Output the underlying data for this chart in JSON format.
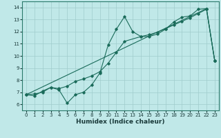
{
  "xlabel": "Humidex (Indice chaleur)",
  "bg_color": "#c0e8e8",
  "grid_color": "#a0cccc",
  "line_color": "#1a6b5a",
  "xlim": [
    -0.5,
    23.5
  ],
  "ylim": [
    5.5,
    14.5
  ],
  "xticks": [
    0,
    1,
    2,
    3,
    4,
    5,
    6,
    7,
    8,
    9,
    10,
    11,
    12,
    13,
    14,
    15,
    16,
    17,
    18,
    19,
    20,
    21,
    22,
    23
  ],
  "yticks": [
    6,
    7,
    8,
    9,
    10,
    11,
    12,
    13,
    14
  ],
  "line1_x": [
    0,
    1,
    2,
    3,
    4,
    5,
    6,
    7,
    8,
    9,
    10,
    11,
    12,
    13,
    14,
    15,
    16,
    17,
    18,
    19,
    20,
    21,
    22,
    23
  ],
  "line1_y": [
    6.8,
    6.7,
    7.1,
    7.4,
    7.2,
    6.1,
    6.8,
    7.0,
    7.6,
    8.6,
    10.9,
    12.2,
    13.25,
    12.0,
    11.6,
    11.6,
    11.8,
    12.2,
    12.8,
    13.2,
    13.3,
    13.85,
    13.9,
    9.6
  ],
  "line2_x": [
    0,
    1,
    2,
    3,
    4,
    5,
    6,
    7,
    8,
    9,
    10,
    11,
    12,
    14,
    15,
    16,
    17,
    18,
    19,
    20,
    21,
    22,
    23
  ],
  "line2_y": [
    6.8,
    6.85,
    7.0,
    7.4,
    7.3,
    7.5,
    7.9,
    8.1,
    8.35,
    8.7,
    9.4,
    10.3,
    11.2,
    11.6,
    11.75,
    11.95,
    12.25,
    12.55,
    12.85,
    13.15,
    13.5,
    13.85,
    9.6
  ],
  "line3_x": [
    0,
    22,
    23
  ],
  "line3_y": [
    6.8,
    13.9,
    9.6
  ]
}
